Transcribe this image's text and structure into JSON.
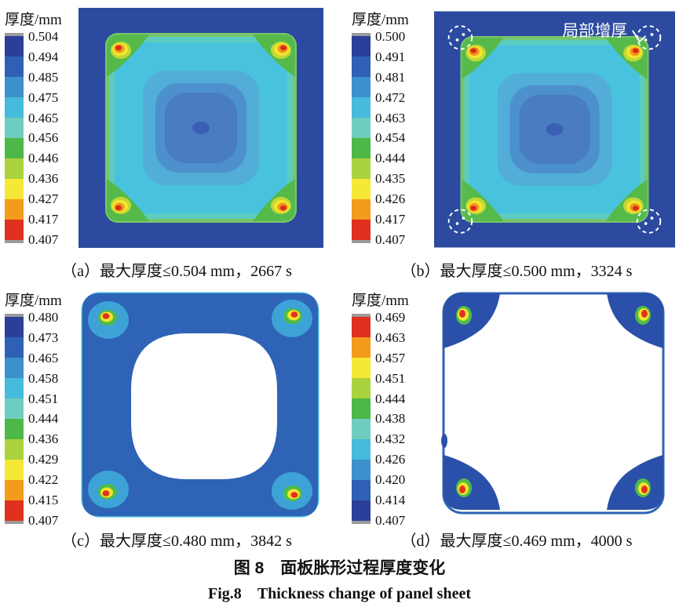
{
  "figure": {
    "caption_zh": "图 8　面板胀形过程厚度变化",
    "caption_en": "Fig.8　Thickness change of panel sheet"
  },
  "colors": {
    "plot_background_blue": "#2c4a9f",
    "ring_blue": "#2e63b6",
    "corner_green": "#56ba4b",
    "hotspot_red": "#dd2b1c",
    "annotation_white": "#ffffff",
    "colorbar_cap_gray": "#9b9b9b"
  },
  "panels": [
    {
      "id": "a",
      "caption": "（a）最大厚度≤0.504 mm，2667 s",
      "max_thickness_mm": 0.504,
      "time_s": 2667,
      "colorbar": {
        "title": "厚度/mm",
        "labels": [
          "0.504",
          "0.494",
          "0.485",
          "0.475",
          "0.465",
          "0.456",
          "0.446",
          "0.436",
          "0.427",
          "0.417",
          "0.407"
        ],
        "colors": [
          "#2b3f99",
          "#2e61b6",
          "#3e90cc",
          "#46bbdb",
          "#6fcdbf",
          "#4db748",
          "#abd23f",
          "#f6e837",
          "#f39b1d",
          "#e0301e"
        ]
      }
    },
    {
      "id": "b",
      "caption": "（b）最大厚度≤0.500 mm，3324 s",
      "max_thickness_mm": 0.5,
      "time_s": 3324,
      "annotation": "局部增厚",
      "colorbar": {
        "title": "厚度/mm",
        "labels": [
          "0.500",
          "0.491",
          "0.481",
          "0.472",
          "0.463",
          "0.454",
          "0.444",
          "0.435",
          "0.426",
          "0.417",
          "0.407"
        ],
        "colors": [
          "#2b3f99",
          "#2e61b6",
          "#3e90cc",
          "#46bbdb",
          "#6fcdbf",
          "#4db748",
          "#abd23f",
          "#f6e837",
          "#f39b1d",
          "#e0301e"
        ]
      }
    },
    {
      "id": "c",
      "caption": "（c）最大厚度≤0.480 mm，3842 s",
      "max_thickness_mm": 0.48,
      "time_s": 3842,
      "colorbar": {
        "title": "厚度/mm",
        "labels": [
          "0.480",
          "0.473",
          "0.465",
          "0.458",
          "0.451",
          "0.444",
          "0.436",
          "0.429",
          "0.422",
          "0.415",
          "0.407"
        ],
        "colors": [
          "#2b3f99",
          "#2e61b6",
          "#3e90cc",
          "#46bbdb",
          "#6fcdbf",
          "#4db748",
          "#abd23f",
          "#f6e837",
          "#f39b1d",
          "#e0301e"
        ]
      }
    },
    {
      "id": "d",
      "caption": "（d）最大厚度≤0.469 mm，4000 s",
      "max_thickness_mm": 0.469,
      "time_s": 4000,
      "colorbar": {
        "title": "厚度/mm",
        "labels": [
          "0.469",
          "0.463",
          "0.457",
          "0.451",
          "0.444",
          "0.438",
          "0.432",
          "0.426",
          "0.420",
          "0.414",
          "0.407"
        ],
        "colors": [
          "#e0301e",
          "#f39b1d",
          "#f6e837",
          "#abd23f",
          "#4db748",
          "#6fcdbf",
          "#46bbdb",
          "#3e90cc",
          "#2e61b6",
          "#2b3f99"
        ]
      }
    }
  ],
  "chart_data": [
    {
      "type": "heatmap",
      "panel": "a",
      "title": "（a）最大厚度≤0.504 mm，2667 s",
      "colorbar_label": "厚度/mm",
      "levels_mm": [
        0.504,
        0.494,
        0.485,
        0.475,
        0.465,
        0.456,
        0.446,
        0.436,
        0.427,
        0.417,
        0.407
      ],
      "range_mm": [
        0.407,
        0.504
      ],
      "time_s": 2667,
      "legend_position": "left",
      "features": "square sheet on dark-blue background; cyan-to-blue concentric contours toward center; red thickening hotspots in four corners"
    },
    {
      "type": "heatmap",
      "panel": "b",
      "title": "（b）最大厚度≤0.500 mm，3324 s",
      "colorbar_label": "厚度/mm",
      "levels_mm": [
        0.5,
        0.491,
        0.481,
        0.472,
        0.463,
        0.454,
        0.444,
        0.435,
        0.426,
        0.417,
        0.407
      ],
      "range_mm": [
        0.407,
        0.5
      ],
      "time_s": 3324,
      "legend_position": "left",
      "annotations": [
        "局部增厚"
      ],
      "features": "same sheet with white dashed circles marking local thickening at the four corners"
    },
    {
      "type": "heatmap",
      "panel": "c",
      "title": "（c）最大厚度≤0.480 mm，3842 s",
      "colorbar_label": "厚度/mm",
      "levels_mm": [
        0.48,
        0.473,
        0.465,
        0.458,
        0.451,
        0.444,
        0.436,
        0.429,
        0.422,
        0.415,
        0.407
      ],
      "range_mm": [
        0.407,
        0.48
      ],
      "time_s": 3842,
      "legend_position": "left",
      "features": "blue ring-shaped sheet with large white (out-of-range) central region; red hotspots in corners"
    },
    {
      "type": "heatmap",
      "panel": "d",
      "title": "（d）最大厚度≤0.469 mm，4000 s",
      "colorbar_label": "厚度/mm",
      "levels_mm": [
        0.469,
        0.463,
        0.457,
        0.451,
        0.444,
        0.438,
        0.432,
        0.426,
        0.42,
        0.414,
        0.407
      ],
      "range_mm": [
        0.407,
        0.469
      ],
      "time_s": 4000,
      "legend_position": "left",
      "features": "mostly white (out-of-range) sheet; dark-blue corner zones with red hotspots; reversed colorbar (red at top)"
    }
  ]
}
